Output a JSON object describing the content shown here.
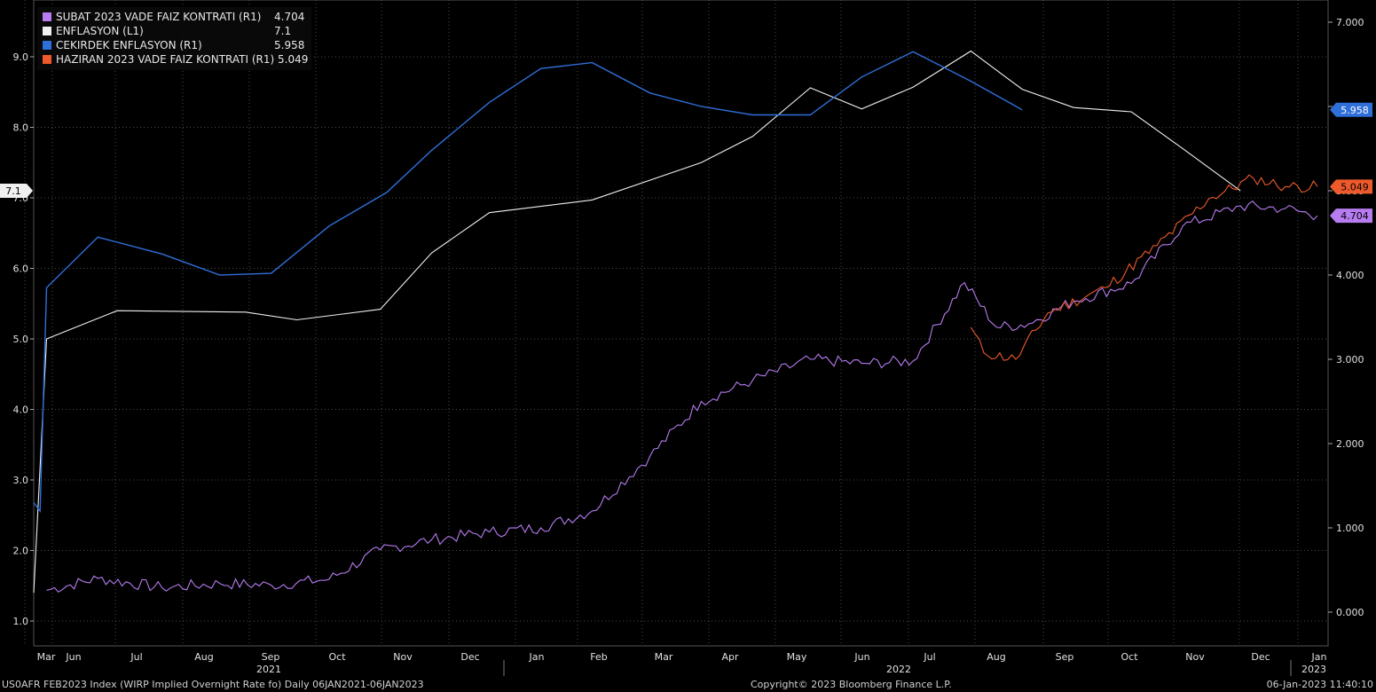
{
  "colors": {
    "background": "#000000",
    "grid": "#4a4a4a",
    "axis_text": "#e0e0e0",
    "subat": "#b77cf0",
    "enflasyon": "#f0f0f0",
    "cekirdek": "#2f6fd9",
    "haziran": "#ee5a2c"
  },
  "legend": [
    {
      "name": "SUBAT 2023 VADE FAIZ KONTRATI (R1)",
      "value": "4.704",
      "color": "#b77cf0"
    },
    {
      "name": "ENFLASYON (L1)",
      "value": "7.1",
      "color": "#f0f0f0"
    },
    {
      "name": "CEKIRDEK ENFLASYON (R1)",
      "value": "5.958",
      "color": "#2f6fd9"
    },
    {
      "name": "HAZIRAN 2023 VADE FAIZ KONTRATI (R1) 5.049",
      "value": "",
      "color": "#ee5a2c"
    }
  ],
  "footer": {
    "left": "US0AFR FEB2023 Index (WIRP Implied Overnight Rate fo)  Daily 06JAN2021-06JAN2023",
    "center": "Copyright© 2023 Bloomberg Finance L.P.",
    "right": "06-Jan-2023 11:40:10"
  },
  "chart_data": {
    "type": "line",
    "x_range": [
      2021.0,
      2023.0
    ],
    "left_axis": {
      "ticks": [
        "1.0",
        "2.0",
        "3.0",
        "4.0",
        "5.0",
        "6.0",
        "7.0",
        "8.0",
        "9.0"
      ],
      "range": [
        0.7,
        9.7
      ]
    },
    "right_axis": {
      "ticks": [
        "0.000",
        "1.000",
        "2.000",
        "3.000",
        "4.000",
        "5.000",
        "6.000",
        "7.000"
      ],
      "range": [
        -0.4,
        7.2
      ]
    },
    "x_months": [
      "Mar",
      "Jun",
      "Jul",
      "Aug",
      "Sep",
      "Oct",
      "Nov",
      "Dec",
      "Jan",
      "Feb",
      "Mar",
      "Apr",
      "May",
      "Jun",
      "Jul",
      "Aug",
      "Sep",
      "Oct",
      "Nov",
      "Dec",
      "Jan"
    ],
    "x_years": [
      "2021",
      "2022",
      "2023"
    ],
    "last_value_tags": [
      {
        "label": "7.1",
        "series": "enflasyon",
        "side": "left"
      },
      {
        "label": "5.958",
        "series": "cekirdek",
        "side": "right"
      },
      {
        "label": "5.049",
        "series": "haziran",
        "side": "right"
      },
      {
        "label": "4.704",
        "series": "subat",
        "side": "right"
      }
    ],
    "series": {
      "enflasyon": {
        "axis": "left",
        "points": [
          [
            2021.0,
            1.4
          ],
          [
            2021.02,
            5.0
          ],
          [
            2021.13,
            5.4
          ],
          [
            2021.33,
            5.38
          ],
          [
            2021.41,
            5.27
          ],
          [
            2021.54,
            5.42
          ],
          [
            2021.62,
            6.22
          ],
          [
            2021.71,
            6.79
          ],
          [
            2021.87,
            6.97
          ],
          [
            2022.04,
            7.5
          ],
          [
            2022.12,
            7.87
          ],
          [
            2022.21,
            8.56
          ],
          [
            2022.29,
            8.26
          ],
          [
            2022.37,
            8.57
          ],
          [
            2022.46,
            9.08
          ],
          [
            2022.54,
            8.54
          ],
          [
            2022.62,
            8.28
          ],
          [
            2022.71,
            8.22
          ],
          [
            2022.79,
            7.7
          ],
          [
            2022.88,
            7.1
          ]
        ]
      },
      "cekirdek": {
        "axis": "right",
        "points": [
          [
            2021.0,
            1.3
          ],
          [
            2021.01,
            1.2
          ],
          [
            2021.02,
            3.85
          ],
          [
            2021.1,
            4.45
          ],
          [
            2021.2,
            4.25
          ],
          [
            2021.29,
            4.0
          ],
          [
            2021.37,
            4.02
          ],
          [
            2021.46,
            4.58
          ],
          [
            2021.55,
            4.98
          ],
          [
            2021.62,
            5.48
          ],
          [
            2021.71,
            6.05
          ],
          [
            2021.79,
            6.45
          ],
          [
            2021.87,
            6.52
          ],
          [
            2021.96,
            6.16
          ],
          [
            2022.04,
            6.0
          ],
          [
            2022.12,
            5.9
          ],
          [
            2022.21,
            5.9
          ],
          [
            2022.29,
            6.35
          ],
          [
            2022.37,
            6.65
          ],
          [
            2022.46,
            6.3
          ],
          [
            2022.54,
            5.96
          ]
        ]
      },
      "subat": {
        "axis": "right",
        "points": [
          [
            2021.02,
            0.26
          ],
          [
            2021.1,
            0.4
          ],
          [
            2021.2,
            0.29
          ],
          [
            2021.29,
            0.34
          ],
          [
            2021.37,
            0.32
          ],
          [
            2021.46,
            0.39
          ],
          [
            2021.54,
            0.74
          ],
          [
            2021.62,
            0.86
          ],
          [
            2021.71,
            0.95
          ],
          [
            2021.79,
            1.0
          ],
          [
            2021.87,
            1.2
          ],
          [
            2021.96,
            1.85
          ],
          [
            2022.04,
            2.5
          ],
          [
            2022.12,
            2.75
          ],
          [
            2022.21,
            3.0
          ],
          [
            2022.29,
            2.95
          ],
          [
            2022.37,
            2.98
          ],
          [
            2022.45,
            3.91
          ],
          [
            2022.5,
            3.38
          ],
          [
            2022.55,
            3.42
          ],
          [
            2022.62,
            3.69
          ],
          [
            2022.71,
            3.9
          ],
          [
            2022.79,
            4.58
          ],
          [
            2022.88,
            4.82
          ],
          [
            2022.95,
            4.79
          ],
          [
            2023.0,
            4.704
          ]
        ]
      },
      "haziran": {
        "axis": "right",
        "points": [
          [
            2022.46,
            3.38
          ],
          [
            2022.48,
            3.08
          ],
          [
            2022.53,
            3.0
          ],
          [
            2022.58,
            3.55
          ],
          [
            2022.67,
            3.85
          ],
          [
            2022.75,
            4.35
          ],
          [
            2022.83,
            4.9
          ],
          [
            2022.9,
            5.15
          ],
          [
            2022.95,
            5.05
          ],
          [
            2023.0,
            5.049
          ]
        ]
      }
    }
  }
}
